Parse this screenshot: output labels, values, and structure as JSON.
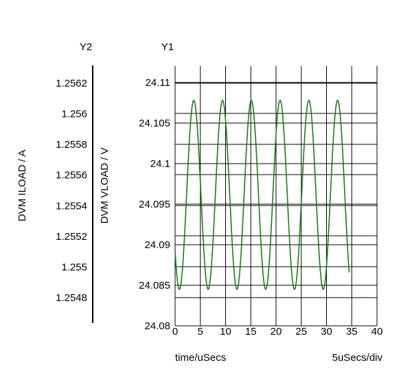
{
  "chart_data": {
    "type": "line",
    "y1_header": "Y1",
    "y2_header": "Y2",
    "y1_label": "DVM VLOAD / V",
    "y2_label": "DVM ILOAD / A",
    "xlabel": "time/uSecs",
    "x_scale_label": "5uSecs/div",
    "xlim": [
      0,
      40
    ],
    "x_ticks": [
      "0",
      "5",
      "10",
      "15",
      "20",
      "25",
      "30",
      "35",
      "40"
    ],
    "ylim": [
      24.08,
      24.11
    ],
    "y1_ticks": [
      "24.08",
      "24.085",
      "24.09",
      "24.095",
      "24.1",
      "24.105",
      "24.11"
    ],
    "y2_ticks": [
      "1.2548",
      "1.255",
      "1.2552",
      "1.2554",
      "1.2556",
      "1.2558",
      "1.256",
      "1.2562"
    ],
    "grid": true,
    "series": [
      {
        "color": "#1a7a1a",
        "waveform": "sine",
        "x_start": 0,
        "x_end": 34.5,
        "period": 5.7,
        "min": 24.0845,
        "max": 24.1078,
        "first_peak_x": 3.7
      }
    ]
  }
}
